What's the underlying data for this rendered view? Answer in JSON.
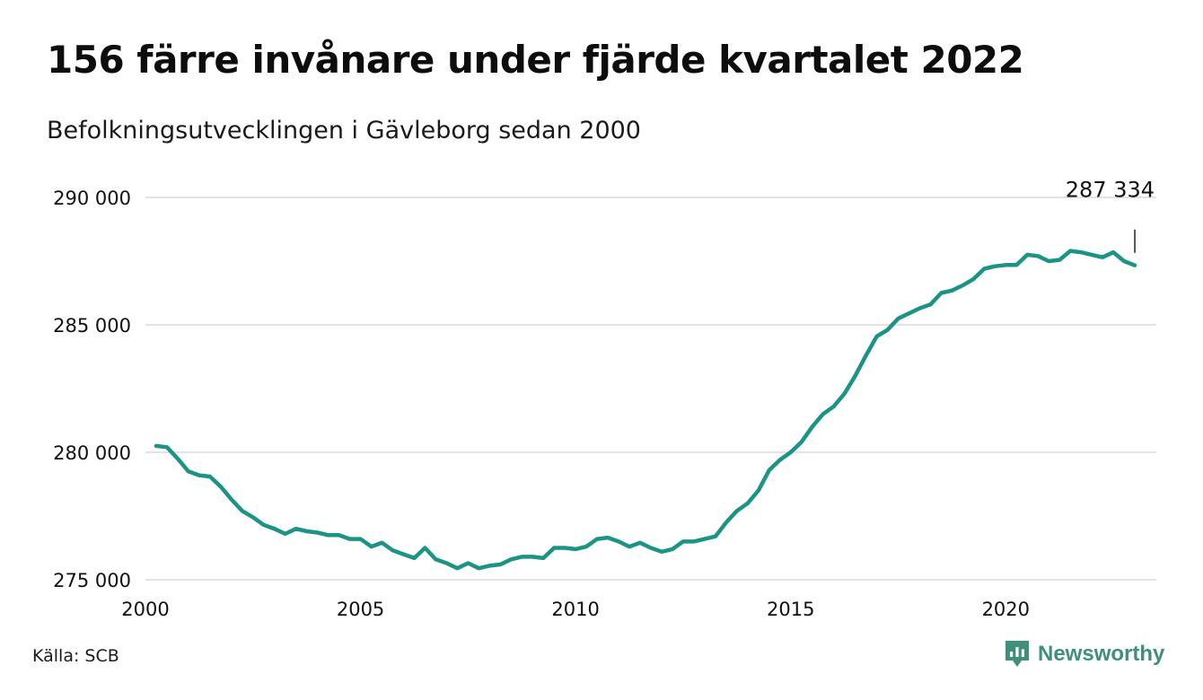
{
  "title": "156 färre invånare under fjärde kvartalet 2022",
  "subtitle": "Befolkningsutvecklingen i Gävleborg sedan 2000",
  "source": "Källa: SCB",
  "brand": {
    "name": "Newsworthy",
    "icon": "newsworthy-logo-icon",
    "color": "#3f8f79"
  },
  "colors": {
    "line": "#1b9485",
    "grid": "#e3e3e3",
    "text": "#111111"
  },
  "chart_data": {
    "type": "line",
    "xlim": [
      2000,
      2023.5
    ],
    "ylim": [
      275000,
      290000
    ],
    "xticks": [
      2000,
      2005,
      2010,
      2015,
      2020
    ],
    "xtick_labels": [
      "2000",
      "2005",
      "2010",
      "2015",
      "2020"
    ],
    "yticks": [
      275000,
      280000,
      285000,
      290000
    ],
    "ytick_labels": [
      "275 000",
      "280 000",
      "285 000",
      "290 000"
    ],
    "grid": "horizontal",
    "annotation": {
      "x": 2023.0,
      "y": 287334,
      "label": "287 334"
    },
    "series": [
      {
        "x": [
          2000.25,
          2000.5,
          2000.75,
          2001.0,
          2001.25,
          2001.5,
          2001.75,
          2002.0,
          2002.25,
          2002.5,
          2002.75,
          2003.0,
          2003.25,
          2003.5,
          2003.75,
          2004.0,
          2004.25,
          2004.5,
          2004.75,
          2005.0,
          2005.25,
          2005.5,
          2005.75,
          2006.0,
          2006.25,
          2006.5,
          2006.75,
          2007.0,
          2007.25,
          2007.5,
          2007.75,
          2008.0,
          2008.25,
          2008.5,
          2008.75,
          2009.0,
          2009.25,
          2009.5,
          2009.75,
          2010.0,
          2010.25,
          2010.5,
          2010.75,
          2011.0,
          2011.25,
          2011.5,
          2011.75,
          2012.0,
          2012.25,
          2012.5,
          2012.75,
          2013.0,
          2013.25,
          2013.5,
          2013.75,
          2014.0,
          2014.25,
          2014.5,
          2014.75,
          2015.0,
          2015.25,
          2015.5,
          2015.75,
          2016.0,
          2016.25,
          2016.5,
          2016.75,
          2017.0,
          2017.25,
          2017.5,
          2017.75,
          2018.0,
          2018.25,
          2018.5,
          2018.75,
          2019.0,
          2019.25,
          2019.5,
          2019.75,
          2020.0,
          2020.25,
          2020.5,
          2020.75,
          2021.0,
          2021.25,
          2021.5,
          2021.75,
          2022.0,
          2022.25,
          2022.5,
          2022.75,
          2023.0
        ],
        "values": [
          280250,
          280200,
          279750,
          279250,
          279100,
          279050,
          278650,
          278150,
          277700,
          277450,
          277150,
          277000,
          276800,
          277000,
          276900,
          276850,
          276750,
          276750,
          276600,
          276600,
          276300,
          276450,
          276150,
          276000,
          275850,
          276250,
          275800,
          275650,
          275450,
          275650,
          275450,
          275550,
          275600,
          275800,
          275900,
          275900,
          275850,
          276250,
          276250,
          276200,
          276300,
          276600,
          276650,
          276500,
          276300,
          276450,
          276250,
          276100,
          276200,
          276500,
          276500,
          276600,
          276700,
          277250,
          277700,
          278000,
          278500,
          279300,
          279700,
          280000,
          280400,
          281000,
          281500,
          281800,
          282300,
          283000,
          283800,
          284550,
          284800,
          285250,
          285450,
          285650,
          285800,
          286250,
          286350,
          286550,
          286800,
          287200,
          287300,
          287350,
          287350,
          287750,
          287700,
          287500,
          287550,
          287900,
          287850,
          287750,
          287650,
          287850,
          287500,
          287334
        ]
      }
    ]
  }
}
